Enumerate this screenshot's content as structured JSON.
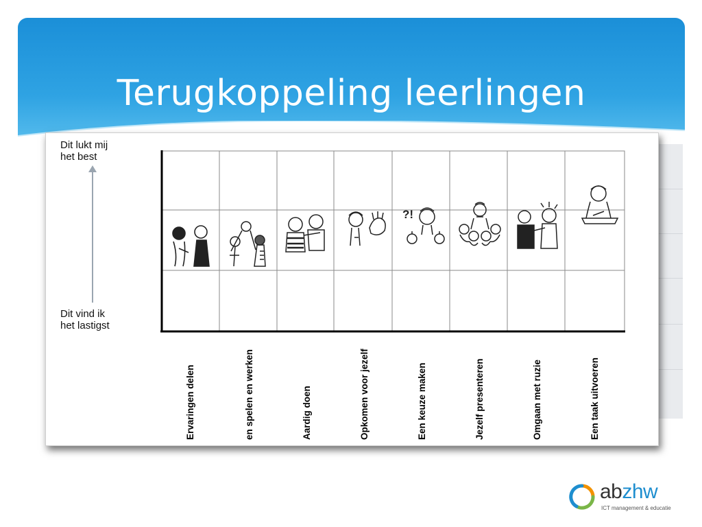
{
  "slide": {
    "title": "Terugkoppeling leerlingen"
  },
  "figure": {
    "y_top_label": [
      "Dit lukt mij",
      "het best"
    ],
    "y_bottom_label": [
      "Dit vind ik",
      "het lastigst"
    ],
    "columns": [
      {
        "label": "Ervaringen delen",
        "icon": "children-talking-icon"
      },
      {
        "label": "en spelen en werken",
        "icon": "children-playing-ball-icon"
      },
      {
        "label": "Aardig doen",
        "icon": "children-hugging-icon"
      },
      {
        "label": "Opkomen voor jezelf",
        "icon": "child-stop-hand-icon"
      },
      {
        "label": "Een keuze maken",
        "icon": "child-choosing-apples-icon"
      },
      {
        "label": "Jezelf presenteren",
        "icon": "child-presenting-to-group-icon"
      },
      {
        "label": "Omgaan met ruzie",
        "icon": "children-arguing-icon"
      },
      {
        "label": "Een taak uitvoeren",
        "icon": "child-writing-at-desk-icon"
      }
    ]
  },
  "logo": {
    "prefix": "ab",
    "highlight": "zhw",
    "tagline": "ICT management & educatie",
    "colors": {
      "orange": "#f39200",
      "blue": "#1e8ecf",
      "green": "#7ab648"
    }
  }
}
